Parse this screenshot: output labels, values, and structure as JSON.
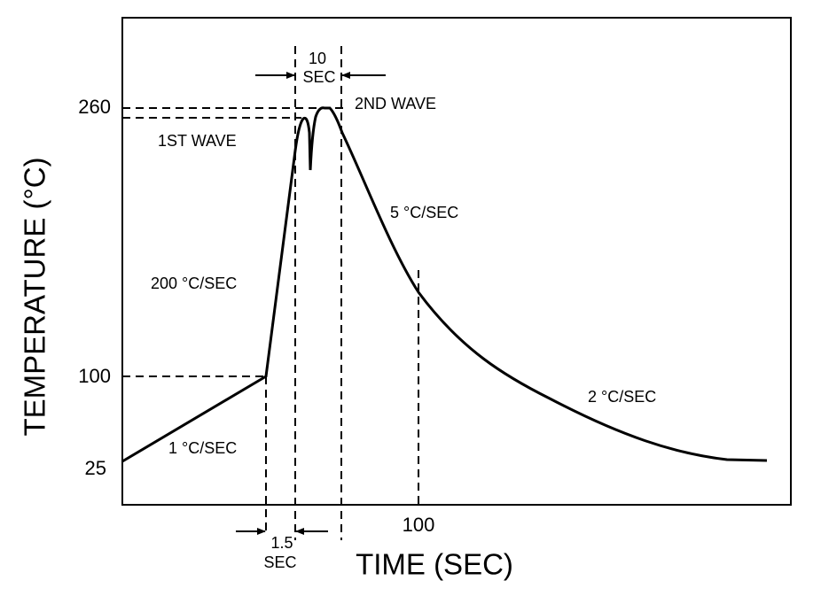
{
  "y_axis": {
    "label": "TEMPERATURE (°C)",
    "ticks": [
      "260",
      "100",
      "25"
    ]
  },
  "x_axis": {
    "label": "TIME (SEC)",
    "ticks": [
      "100"
    ]
  },
  "annotations": {
    "top_interval": [
      "10",
      "SEC"
    ],
    "bottom_interval": [
      "1.5",
      "SEC"
    ],
    "second_wave": "2ND WAVE",
    "first_wave": "1ST WAVE",
    "rate_5": "5 °C/SEC",
    "rate_200": "200 °C/SEC",
    "rate_1": "1 °C/SEC",
    "rate_2": "2 °C/SEC"
  }
}
